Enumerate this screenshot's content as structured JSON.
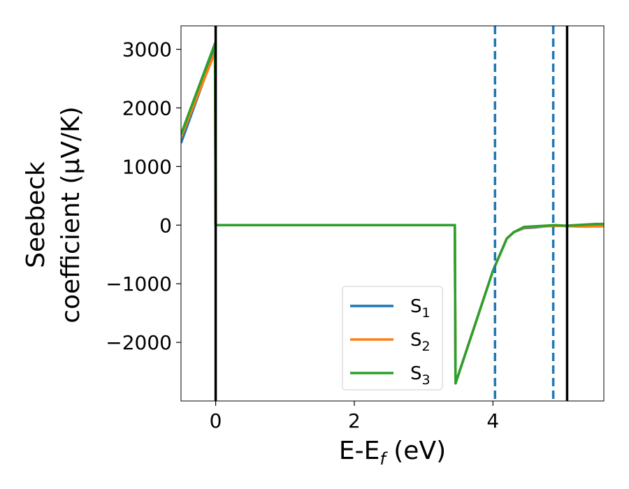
{
  "chart_data": {
    "type": "line",
    "xlabel": "E-E_f (eV)",
    "ylabel_line1": "Seebeck",
    "ylabel_line2": "coefficient (μV/K)",
    "xlim": [
      -0.5,
      5.6
    ],
    "ylim": [
      -3000,
      3400
    ],
    "xticks": [
      0,
      2,
      4
    ],
    "yticks": [
      3000,
      2000,
      1000,
      0,
      -1000,
      -2000
    ],
    "ytick_labels": [
      "3000",
      "2000",
      "1000",
      "0",
      "−1000",
      "−2000"
    ],
    "grid": false,
    "legend_position": "lower-right",
    "vertical_lines": [
      {
        "x": 0.0,
        "style": "solid",
        "color": "#000000"
      },
      {
        "x": 5.07,
        "style": "solid",
        "color": "#000000"
      },
      {
        "x": 4.03,
        "style": "dashed",
        "color": "#1f77b4"
      },
      {
        "x": 4.87,
        "style": "dashed",
        "color": "#1f77b4"
      }
    ],
    "series": [
      {
        "name": "S₁",
        "color": "#1f77b4",
        "x": [
          -0.5,
          -0.01,
          0.0,
          3.45,
          3.46,
          4.0,
          4.2,
          4.3,
          4.45,
          4.6,
          4.75,
          4.9,
          5.05,
          5.2,
          5.35,
          5.5,
          5.6
        ],
        "y": [
          1400,
          3000,
          0,
          0,
          -2700,
          -780,
          -230,
          -120,
          -50,
          -40,
          -20,
          -10,
          -15,
          -20,
          -25,
          -10,
          0
        ]
      },
      {
        "name": "S₂",
        "color": "#ff7f0e",
        "x": [
          -0.5,
          -0.01,
          0.0,
          3.45,
          3.46,
          4.0,
          4.2,
          4.3,
          4.45,
          4.6,
          4.75,
          4.9,
          5.05,
          5.2,
          5.35,
          5.5,
          5.6
        ],
        "y": [
          1500,
          2950,
          0,
          0,
          -2700,
          -780,
          -230,
          -120,
          -40,
          -30,
          -20,
          -15,
          -10,
          -20,
          -25,
          -20,
          -20
        ]
      },
      {
        "name": "S₃",
        "color": "#2ca02c",
        "x": [
          -0.5,
          -0.01,
          0.0,
          3.45,
          3.46,
          4.0,
          4.2,
          4.3,
          4.45,
          4.6,
          4.75,
          4.9,
          5.05,
          5.2,
          5.35,
          5.5,
          5.6
        ],
        "y": [
          1550,
          3100,
          0,
          0,
          -2700,
          -780,
          -230,
          -120,
          -30,
          -20,
          -10,
          0,
          -10,
          0,
          10,
          20,
          20
        ]
      }
    ]
  },
  "legend": {
    "items": [
      {
        "base": "S",
        "sub": "1",
        "color": "#1f77b4"
      },
      {
        "base": "S",
        "sub": "2",
        "color": "#ff7f0e"
      },
      {
        "base": "S",
        "sub": "3",
        "color": "#2ca02c"
      }
    ]
  }
}
